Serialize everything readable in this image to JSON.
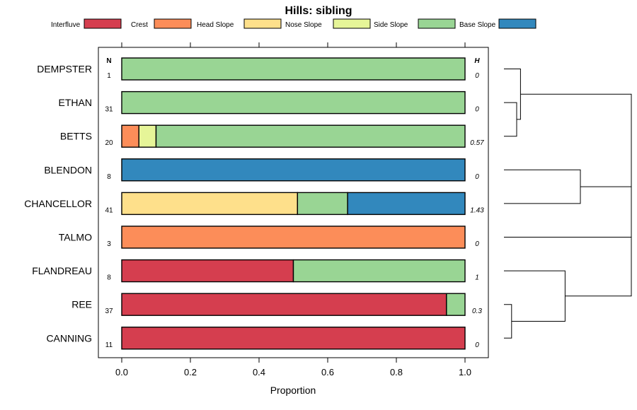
{
  "chart_data": {
    "type": "bar",
    "orientation": "horizontal",
    "stacked": true,
    "title": "Hills: sibling",
    "xlabel": "Proportion",
    "ylabel": "",
    "xlim": [
      0,
      1
    ],
    "xticks": [
      "0.0",
      "0.2",
      "0.4",
      "0.6",
      "0.8",
      "1.0"
    ],
    "xtick_values": [
      0,
      0.2,
      0.4,
      0.6,
      0.8,
      1.0
    ],
    "n_header": "N",
    "h_header": "H",
    "legend_position": "top",
    "categories": [
      "DEMPSTER",
      "ETHAN",
      "BETTS",
      "BLENDON",
      "CHANCELLOR",
      "TALMO",
      "FLANDREAU",
      "REE",
      "CANNING"
    ],
    "n_values": [
      "1",
      "31",
      "20",
      "8",
      "41",
      "3",
      "8",
      "37",
      "11"
    ],
    "h_values": [
      "0",
      "0",
      "0.57",
      "0",
      "1.43",
      "0",
      "1",
      "0.3",
      "0"
    ],
    "series": [
      {
        "name": "Interfluve",
        "color": "#d53e4f",
        "values": [
          0,
          0,
          0,
          0,
          0,
          0,
          0.5,
          0.946,
          1
        ]
      },
      {
        "name": "Crest",
        "color": "#fc8d59",
        "values": [
          0,
          0,
          0.05,
          0,
          0,
          1,
          0,
          0,
          0
        ]
      },
      {
        "name": "Head Slope",
        "color": "#fee08b",
        "values": [
          0,
          0,
          0,
          0,
          0.512,
          0,
          0,
          0,
          0
        ]
      },
      {
        "name": "Nose Slope",
        "color": "#e6f598",
        "values": [
          0,
          0,
          0.05,
          0,
          0,
          0,
          0,
          0,
          0
        ]
      },
      {
        "name": "Side Slope",
        "color": "#99d594",
        "values": [
          1,
          1,
          0.9,
          0,
          0.146,
          0,
          0.5,
          0.054,
          0
        ]
      },
      {
        "name": "Base Slope",
        "color": "#3288bd",
        "values": [
          0,
          0,
          0,
          1,
          0.342,
          0,
          0,
          0,
          0
        ]
      }
    ],
    "dendrogram": {
      "description": "hierarchical clustering of rows",
      "merges": [
        {
          "left": "ETHAN",
          "right": "BETTS",
          "height": 0.1
        },
        {
          "left": "DEMPSTER",
          "right": "ETHAN+BETTS",
          "height": 0.13
        },
        {
          "left": "BLENDON",
          "right": "CHANCELLOR",
          "height": 0.6
        },
        {
          "left": "REE",
          "right": "CANNING",
          "height": 0.06
        },
        {
          "left": "FLANDREAU",
          "right": "REE+CANNING",
          "height": 0.48
        },
        {
          "left": "BLENDON+CHANCELLOR",
          "right": "TALMO",
          "height": 1.0
        },
        {
          "left": "DEMPSTER+ETHAN+BETTS",
          "right": "BLENDON+CHANCELLOR+TALMO",
          "height": 1.0
        },
        {
          "left": "ALL_TOP",
          "right": "FLANDREAU+REE+CANNING",
          "height": 1.0
        }
      ]
    }
  }
}
